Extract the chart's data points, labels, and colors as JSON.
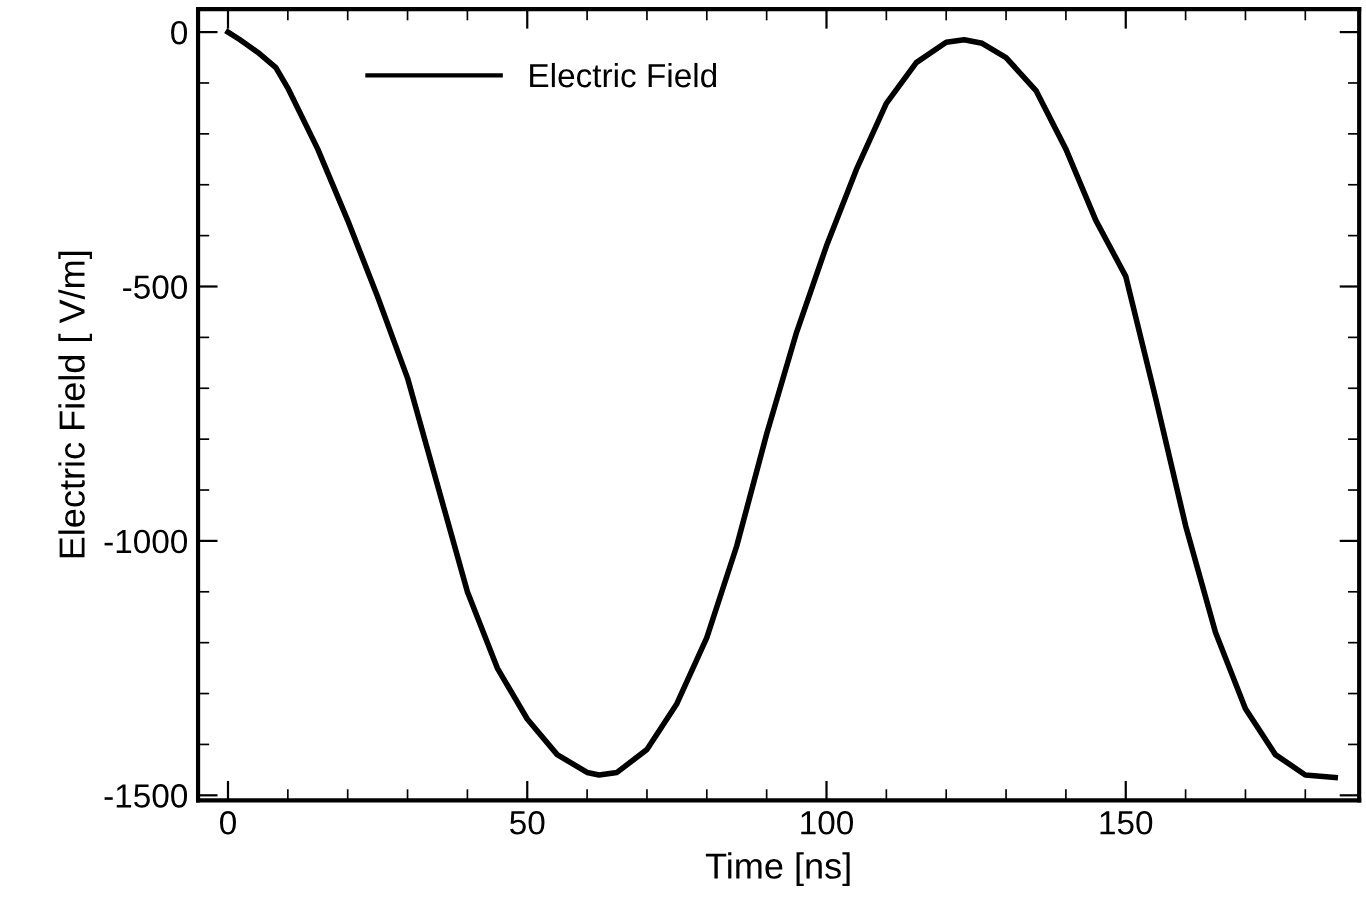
{
  "chart_data": {
    "type": "line",
    "xlabel": "Time [ns]",
    "ylabel": "Electric Field [ V/m]",
    "xlim": [
      -5,
      189
    ],
    "ylim": [
      -1510,
      45
    ],
    "xticks": [
      0,
      50,
      100,
      150
    ],
    "yticks": [
      -1500,
      -1000,
      -500,
      0
    ],
    "x": [
      0,
      2,
      5,
      8,
      10,
      15,
      20,
      25,
      30,
      35,
      40,
      45,
      50,
      55,
      60,
      62,
      65,
      70,
      75,
      80,
      85,
      90,
      95,
      100,
      105,
      110,
      115,
      120,
      123,
      126,
      130,
      135,
      140,
      145,
      150,
      155,
      160,
      165,
      170,
      175,
      180,
      185
    ],
    "series": [
      {
        "name": "Electric Field",
        "color": "#000000",
        "values": [
          0,
          -15,
          -40,
          -70,
          -110,
          -230,
          -370,
          -520,
          -680,
          -890,
          -1100,
          -1250,
          -1350,
          -1420,
          -1455,
          -1460,
          -1455,
          -1410,
          -1320,
          -1190,
          -1010,
          -790,
          -590,
          -420,
          -270,
          -140,
          -60,
          -20,
          -15,
          -22,
          -50,
          -115,
          -230,
          -370,
          -480,
          -720,
          -970,
          -1180,
          -1330,
          -1420,
          -1460,
          -1465
        ]
      }
    ],
    "grid": false,
    "legend": "top left",
    "marker": "none",
    "line_style": "solid"
  }
}
